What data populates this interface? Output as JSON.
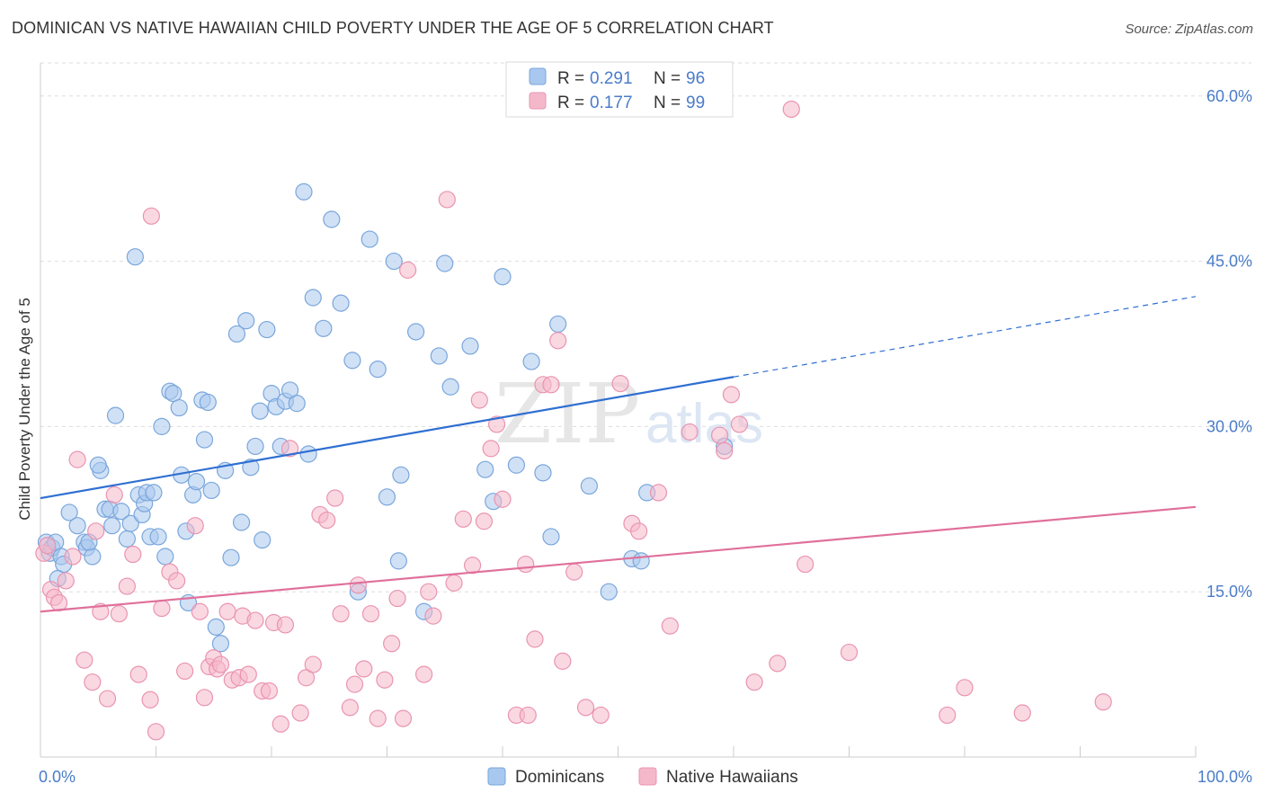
{
  "title": "DOMINICAN VS NATIVE HAWAIIAN CHILD POVERTY UNDER THE AGE OF 5 CORRELATION CHART",
  "source": "Source: ZipAtlas.com",
  "watermark": {
    "zip": "ZIP",
    "atlas": "atlas"
  },
  "colors": {
    "blue_fill": "#a9c8ef",
    "blue_stroke": "#7aa6db",
    "blue_line": "#2f6fd1",
    "pink_fill": "#f5b8cb",
    "pink_stroke": "#e994b0",
    "pink_line": "#e0709a",
    "tick_text": "#4a7cc9",
    "grid": "#dddddd"
  },
  "legend": {
    "entries": [
      {
        "r_label": "R = ",
        "r_value": "0.291",
        "n_label": "N = ",
        "n_value": "96",
        "series": "blue"
      },
      {
        "r_label": "R = ",
        "r_value": "0.177",
        "n_label": "N = ",
        "n_value": "99",
        "series": "pink"
      }
    ]
  },
  "chart_data": {
    "type": "scatter",
    "title": "DOMINICAN VS NATIVE HAWAIIAN CHILD POVERTY UNDER THE AGE OF 5 CORRELATION CHART",
    "xlabel": "",
    "ylabel": "Child Poverty Under the Age of 5",
    "xlim": [
      0,
      100
    ],
    "ylim": [
      0,
      63
    ],
    "x_tick_labels": [
      "0.0%",
      "100.0%"
    ],
    "y_ticks": [
      15,
      30,
      45,
      60
    ],
    "y_tick_labels": [
      "15.0%",
      "30.0%",
      "45.0%",
      "60.0%"
    ],
    "grid": true,
    "legend_position": "top-center",
    "series": [
      {
        "name": "Dominicans",
        "color": "#a9c8ef",
        "trend": {
          "x": [
            0,
            60
          ],
          "y": [
            23.5,
            34.5
          ],
          "dashed_extension_to_x": 100,
          "dashed_end_y": 41.8
        },
        "points": [
          [
            0.5,
            19.5
          ],
          [
            0.8,
            18.5
          ],
          [
            1.0,
            19.0
          ],
          [
            1.3,
            19.5
          ],
          [
            1.8,
            18.2
          ],
          [
            2.0,
            17.5
          ],
          [
            1.5,
            16.2
          ],
          [
            2.5,
            22.2
          ],
          [
            3.2,
            21.0
          ],
          [
            3.8,
            19.5
          ],
          [
            4.0,
            19.0
          ],
          [
            4.5,
            18.2
          ],
          [
            4.2,
            19.5
          ],
          [
            5.2,
            26.0
          ],
          [
            5.0,
            26.5
          ],
          [
            5.6,
            22.5
          ],
          [
            6.0,
            22.5
          ],
          [
            6.2,
            21.0
          ],
          [
            6.5,
            31.0
          ],
          [
            7.0,
            22.3
          ],
          [
            7.5,
            19.8
          ],
          [
            7.8,
            21.2
          ],
          [
            8.2,
            45.4
          ],
          [
            8.5,
            23.8
          ],
          [
            8.8,
            22.0
          ],
          [
            9.0,
            23.0
          ],
          [
            9.2,
            24.0
          ],
          [
            9.5,
            20.0
          ],
          [
            9.8,
            24.0
          ],
          [
            10.2,
            20.0
          ],
          [
            10.5,
            30.0
          ],
          [
            10.8,
            18.2
          ],
          [
            11.2,
            33.2
          ],
          [
            11.5,
            33.0
          ],
          [
            12.0,
            31.7
          ],
          [
            12.2,
            25.6
          ],
          [
            12.6,
            20.5
          ],
          [
            12.8,
            14.0
          ],
          [
            13.2,
            23.8
          ],
          [
            13.5,
            25.0
          ],
          [
            14.0,
            32.4
          ],
          [
            14.2,
            28.8
          ],
          [
            14.5,
            32.2
          ],
          [
            14.8,
            24.2
          ],
          [
            15.2,
            11.8
          ],
          [
            15.6,
            10.3
          ],
          [
            16.0,
            26.0
          ],
          [
            16.5,
            18.1
          ],
          [
            17.0,
            38.4
          ],
          [
            17.4,
            21.3
          ],
          [
            17.8,
            39.6
          ],
          [
            18.2,
            26.3
          ],
          [
            18.6,
            28.2
          ],
          [
            19.0,
            31.4
          ],
          [
            19.2,
            19.7
          ],
          [
            19.6,
            38.8
          ],
          [
            20.0,
            33.0
          ],
          [
            20.4,
            31.8
          ],
          [
            20.8,
            28.2
          ],
          [
            21.2,
            32.3
          ],
          [
            21.6,
            33.3
          ],
          [
            22.2,
            32.1
          ],
          [
            22.8,
            51.3
          ],
          [
            23.2,
            27.5
          ],
          [
            23.6,
            41.7
          ],
          [
            24.5,
            38.9
          ],
          [
            25.2,
            48.8
          ],
          [
            26.0,
            41.2
          ],
          [
            27.0,
            36.0
          ],
          [
            27.5,
            15.0
          ],
          [
            28.5,
            47.0
          ],
          [
            29.2,
            35.2
          ],
          [
            30.0,
            23.6
          ],
          [
            30.6,
            45.0
          ],
          [
            31.2,
            25.6
          ],
          [
            32.5,
            38.6
          ],
          [
            33.2,
            13.2
          ],
          [
            34.5,
            36.4
          ],
          [
            35.0,
            44.8
          ],
          [
            35.5,
            33.6
          ],
          [
            37.2,
            37.3
          ],
          [
            38.5,
            26.1
          ],
          [
            39.2,
            23.2
          ],
          [
            40.0,
            43.6
          ],
          [
            41.2,
            26.5
          ],
          [
            42.5,
            35.9
          ],
          [
            43.5,
            25.8
          ],
          [
            44.2,
            20.0
          ],
          [
            44.8,
            39.3
          ],
          [
            47.5,
            24.6
          ],
          [
            49.2,
            15.0
          ],
          [
            51.2,
            18.0
          ],
          [
            52.0,
            17.8
          ],
          [
            52.5,
            24.0
          ],
          [
            59.2,
            28.2
          ],
          [
            31.0,
            17.8
          ]
        ]
      },
      {
        "name": "Native Hawaiians",
        "color": "#f5b8cb",
        "trend": {
          "x": [
            0,
            100
          ],
          "y": [
            13.2,
            22.7
          ]
        },
        "points": [
          [
            0.3,
            18.5
          ],
          [
            0.6,
            19.2
          ],
          [
            0.9,
            15.2
          ],
          [
            1.2,
            14.5
          ],
          [
            1.6,
            14.0
          ],
          [
            2.2,
            16.0
          ],
          [
            2.8,
            18.2
          ],
          [
            3.2,
            27.0
          ],
          [
            3.8,
            8.8
          ],
          [
            4.5,
            6.8
          ],
          [
            4.8,
            20.5
          ],
          [
            5.2,
            13.2
          ],
          [
            5.8,
            5.3
          ],
          [
            6.4,
            23.8
          ],
          [
            6.8,
            13.0
          ],
          [
            7.5,
            15.5
          ],
          [
            8.0,
            18.4
          ],
          [
            8.5,
            7.5
          ],
          [
            9.5,
            5.2
          ],
          [
            9.6,
            49.1
          ],
          [
            10.0,
            2.3
          ],
          [
            10.5,
            13.5
          ],
          [
            11.2,
            16.8
          ],
          [
            11.8,
            16.0
          ],
          [
            12.5,
            7.8
          ],
          [
            13.4,
            21.0
          ],
          [
            13.8,
            13.2
          ],
          [
            14.2,
            5.4
          ],
          [
            14.6,
            8.2
          ],
          [
            15.0,
            9.0
          ],
          [
            15.3,
            8.0
          ],
          [
            15.6,
            8.4
          ],
          [
            16.2,
            13.2
          ],
          [
            16.6,
            7.0
          ],
          [
            17.2,
            7.2
          ],
          [
            17.5,
            12.8
          ],
          [
            18.0,
            7.5
          ],
          [
            18.6,
            12.4
          ],
          [
            19.2,
            6.0
          ],
          [
            19.8,
            6.0
          ],
          [
            20.2,
            12.2
          ],
          [
            20.8,
            3.0
          ],
          [
            21.2,
            12.0
          ],
          [
            21.6,
            28.0
          ],
          [
            22.5,
            4.0
          ],
          [
            23.0,
            7.2
          ],
          [
            23.6,
            8.4
          ],
          [
            24.2,
            22.0
          ],
          [
            24.8,
            21.5
          ],
          [
            25.5,
            23.5
          ],
          [
            26.0,
            13.0
          ],
          [
            26.8,
            4.5
          ],
          [
            27.2,
            6.6
          ],
          [
            27.5,
            15.6
          ],
          [
            28.0,
            8.0
          ],
          [
            28.6,
            13.0
          ],
          [
            29.2,
            3.5
          ],
          [
            29.8,
            7.0
          ],
          [
            30.4,
            10.3
          ],
          [
            30.9,
            14.4
          ],
          [
            31.4,
            3.5
          ],
          [
            31.8,
            44.2
          ],
          [
            33.2,
            7.5
          ],
          [
            33.6,
            15.0
          ],
          [
            34.0,
            12.8
          ],
          [
            35.2,
            50.6
          ],
          [
            35.8,
            15.8
          ],
          [
            36.6,
            21.6
          ],
          [
            37.4,
            17.4
          ],
          [
            38.0,
            32.4
          ],
          [
            38.4,
            21.4
          ],
          [
            39.0,
            28.0
          ],
          [
            39.5,
            30.2
          ],
          [
            40.0,
            23.4
          ],
          [
            41.2,
            3.8
          ],
          [
            42.2,
            3.8
          ],
          [
            42.0,
            17.5
          ],
          [
            42.8,
            10.7
          ],
          [
            43.5,
            33.8
          ],
          [
            44.2,
            33.8
          ],
          [
            44.8,
            37.8
          ],
          [
            45.2,
            8.7
          ],
          [
            46.2,
            16.8
          ],
          [
            47.2,
            4.5
          ],
          [
            48.5,
            3.8
          ],
          [
            50.2,
            33.9
          ],
          [
            51.2,
            21.2
          ],
          [
            51.8,
            20.5
          ],
          [
            53.5,
            24.0
          ],
          [
            54.5,
            11.9
          ],
          [
            56.2,
            29.5
          ],
          [
            58.8,
            29.2
          ],
          [
            59.2,
            27.8
          ],
          [
            59.8,
            32.9
          ],
          [
            60.5,
            30.2
          ],
          [
            61.8,
            6.8
          ],
          [
            63.8,
            8.5
          ],
          [
            66.2,
            17.5
          ],
          [
            70.0,
            9.5
          ]
        ],
        "extra_points": [
          [
            65.0,
            58.8
          ],
          [
            78.5,
            3.8
          ],
          [
            80.0,
            6.3
          ],
          [
            92.0,
            5.0
          ],
          [
            85.0,
            4.0
          ]
        ]
      }
    ]
  },
  "bottom_legend": [
    {
      "label": "Dominicans",
      "series": "blue"
    },
    {
      "label": "Native Hawaiians",
      "series": "pink"
    }
  ]
}
